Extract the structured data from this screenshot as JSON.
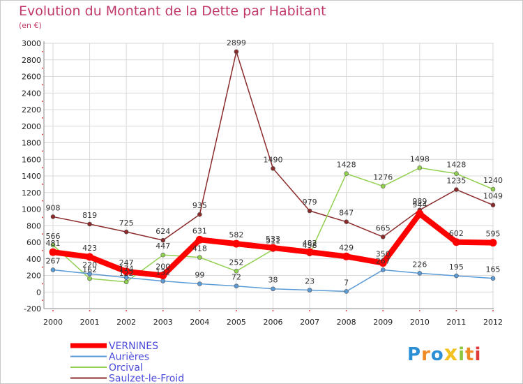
{
  "page": {
    "title": "Evolution du Montant de la Dette par Habitant",
    "subtitle": "(en €)"
  },
  "chart_data": {
    "type": "line",
    "x": [
      "2000",
      "2001",
      "2002",
      "2003",
      "2004",
      "2005",
      "2006",
      "2007",
      "2008",
      "2009",
      "2010",
      "2011",
      "2012"
    ],
    "ylim": [
      -200,
      3000
    ],
    "yticks": [
      -200,
      0,
      200,
      400,
      600,
      800,
      1000,
      1200,
      1400,
      1600,
      1800,
      2000,
      2200,
      2400,
      2600,
      2800,
      3000
    ],
    "grid": true,
    "legend_position": "bottom-left",
    "series": [
      {
        "name": "VERNINES",
        "color": "#ff0000",
        "values": [
          481,
          423,
          247,
          200,
          631,
          582,
          533,
          482,
          429,
          350,
          944,
          602,
          595
        ]
      },
      {
        "name": "Aurières",
        "color": "#5b9bd5",
        "values": [
          267,
          220,
          174,
          132,
          99,
          72,
          38,
          23,
          7,
          267,
          226,
          195,
          165
        ]
      },
      {
        "name": "Orcival",
        "color": "#92d050",
        "values": [
          566,
          162,
          122,
          447,
          418,
          252,
          511,
          458,
          1428,
          1276,
          1498,
          1428,
          1240
        ]
      },
      {
        "name": "Saulzet-le-Froid",
        "color": "#8b2a2a",
        "values": [
          908,
          819,
          725,
          624,
          935,
          2899,
          1490,
          979,
          847,
          665,
          989,
          1235,
          1049
        ]
      }
    ]
  },
  "logo": {
    "letters": [
      "P",
      "r",
      "o",
      "x",
      "i",
      "t",
      "i"
    ],
    "colors": [
      "#2b8fd6",
      "#f08a24",
      "#2b8fd6",
      "#f3c220",
      "#8dc63f",
      "#f08a24",
      "#e03b3b"
    ]
  }
}
